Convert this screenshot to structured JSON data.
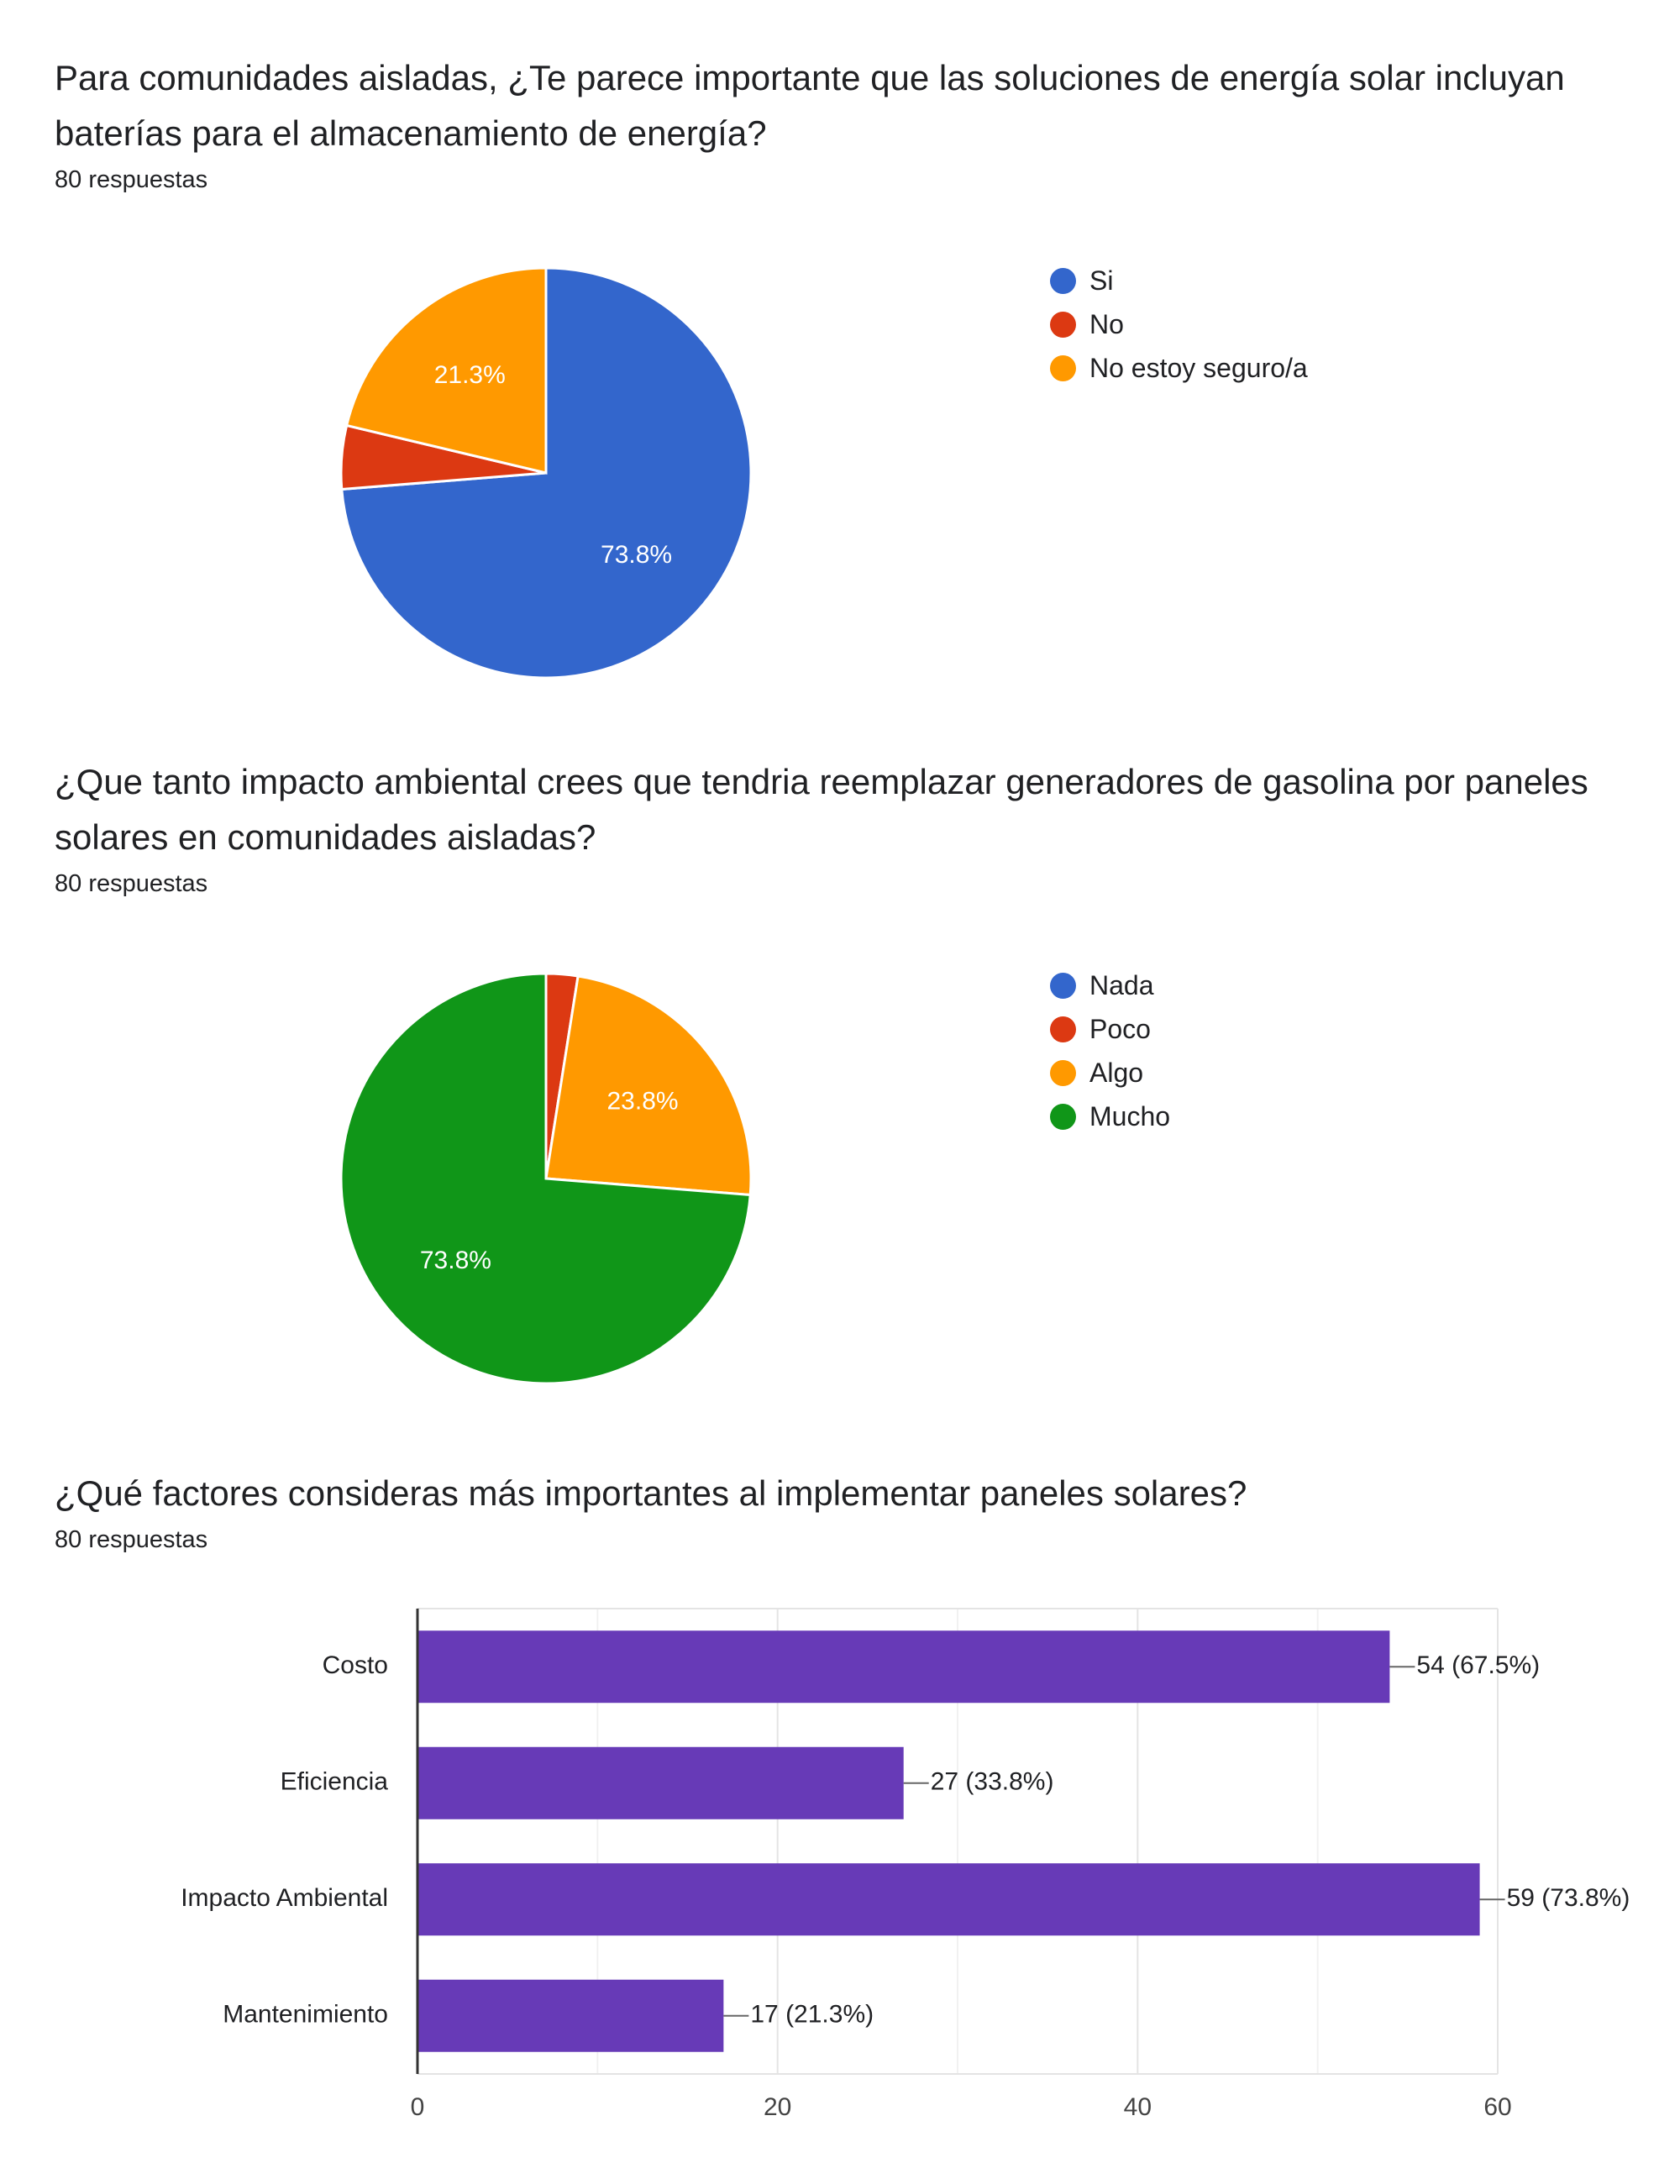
{
  "questions": [
    {
      "title": "Para comunidades aisladas, ¿Te parece importante que las soluciones de energía solar incluyan baterías para el almacenamiento de energía?",
      "responses": "80 respuestas"
    },
    {
      "title": "¿Que tanto impacto ambiental crees que tendria reemplazar generadores de gasolina por paneles solares en comunidades aisladas?",
      "responses": "80 respuestas"
    },
    {
      "title": "¿Qué factores consideras más importantes al implementar paneles solares?",
      "responses": "80 respuestas"
    }
  ],
  "chart_data": [
    {
      "type": "pie",
      "title": "",
      "legend_position": "right",
      "slices": [
        {
          "label": "Si",
          "value": 73.8,
          "color": "#3366cc",
          "data_label": "73.8%"
        },
        {
          "label": "No",
          "value": 5.0,
          "color": "#dc3912",
          "data_label": ""
        },
        {
          "label": "No estoy seguro/a",
          "value": 21.3,
          "color": "#ff9900",
          "data_label": "21.3%"
        }
      ]
    },
    {
      "type": "pie",
      "title": "",
      "legend_position": "right",
      "slices": [
        {
          "label": "Nada",
          "value": 0.0,
          "color": "#3366cc",
          "data_label": ""
        },
        {
          "label": "Poco",
          "value": 2.5,
          "color": "#dc3912",
          "data_label": ""
        },
        {
          "label": "Algo",
          "value": 23.8,
          "color": "#ff9900",
          "data_label": "23.8%"
        },
        {
          "label": "Mucho",
          "value": 73.8,
          "color": "#109618",
          "data_label": "73.8%"
        }
      ]
    },
    {
      "type": "bar",
      "orientation": "horizontal",
      "categories": [
        "Costo",
        "Eficiencia",
        "Impacto Ambiental",
        "Mantenimiento"
      ],
      "values": [
        54,
        27,
        59,
        17
      ],
      "value_labels": [
        "54 (67.5%)",
        "27 (33.8%)",
        "59 (73.8%)",
        "17 (21.3%)"
      ],
      "xlim": [
        0,
        60
      ],
      "xticks": [
        "0",
        "20",
        "40",
        "60"
      ],
      "grid": true,
      "bar_color": "#673ab7"
    }
  ]
}
